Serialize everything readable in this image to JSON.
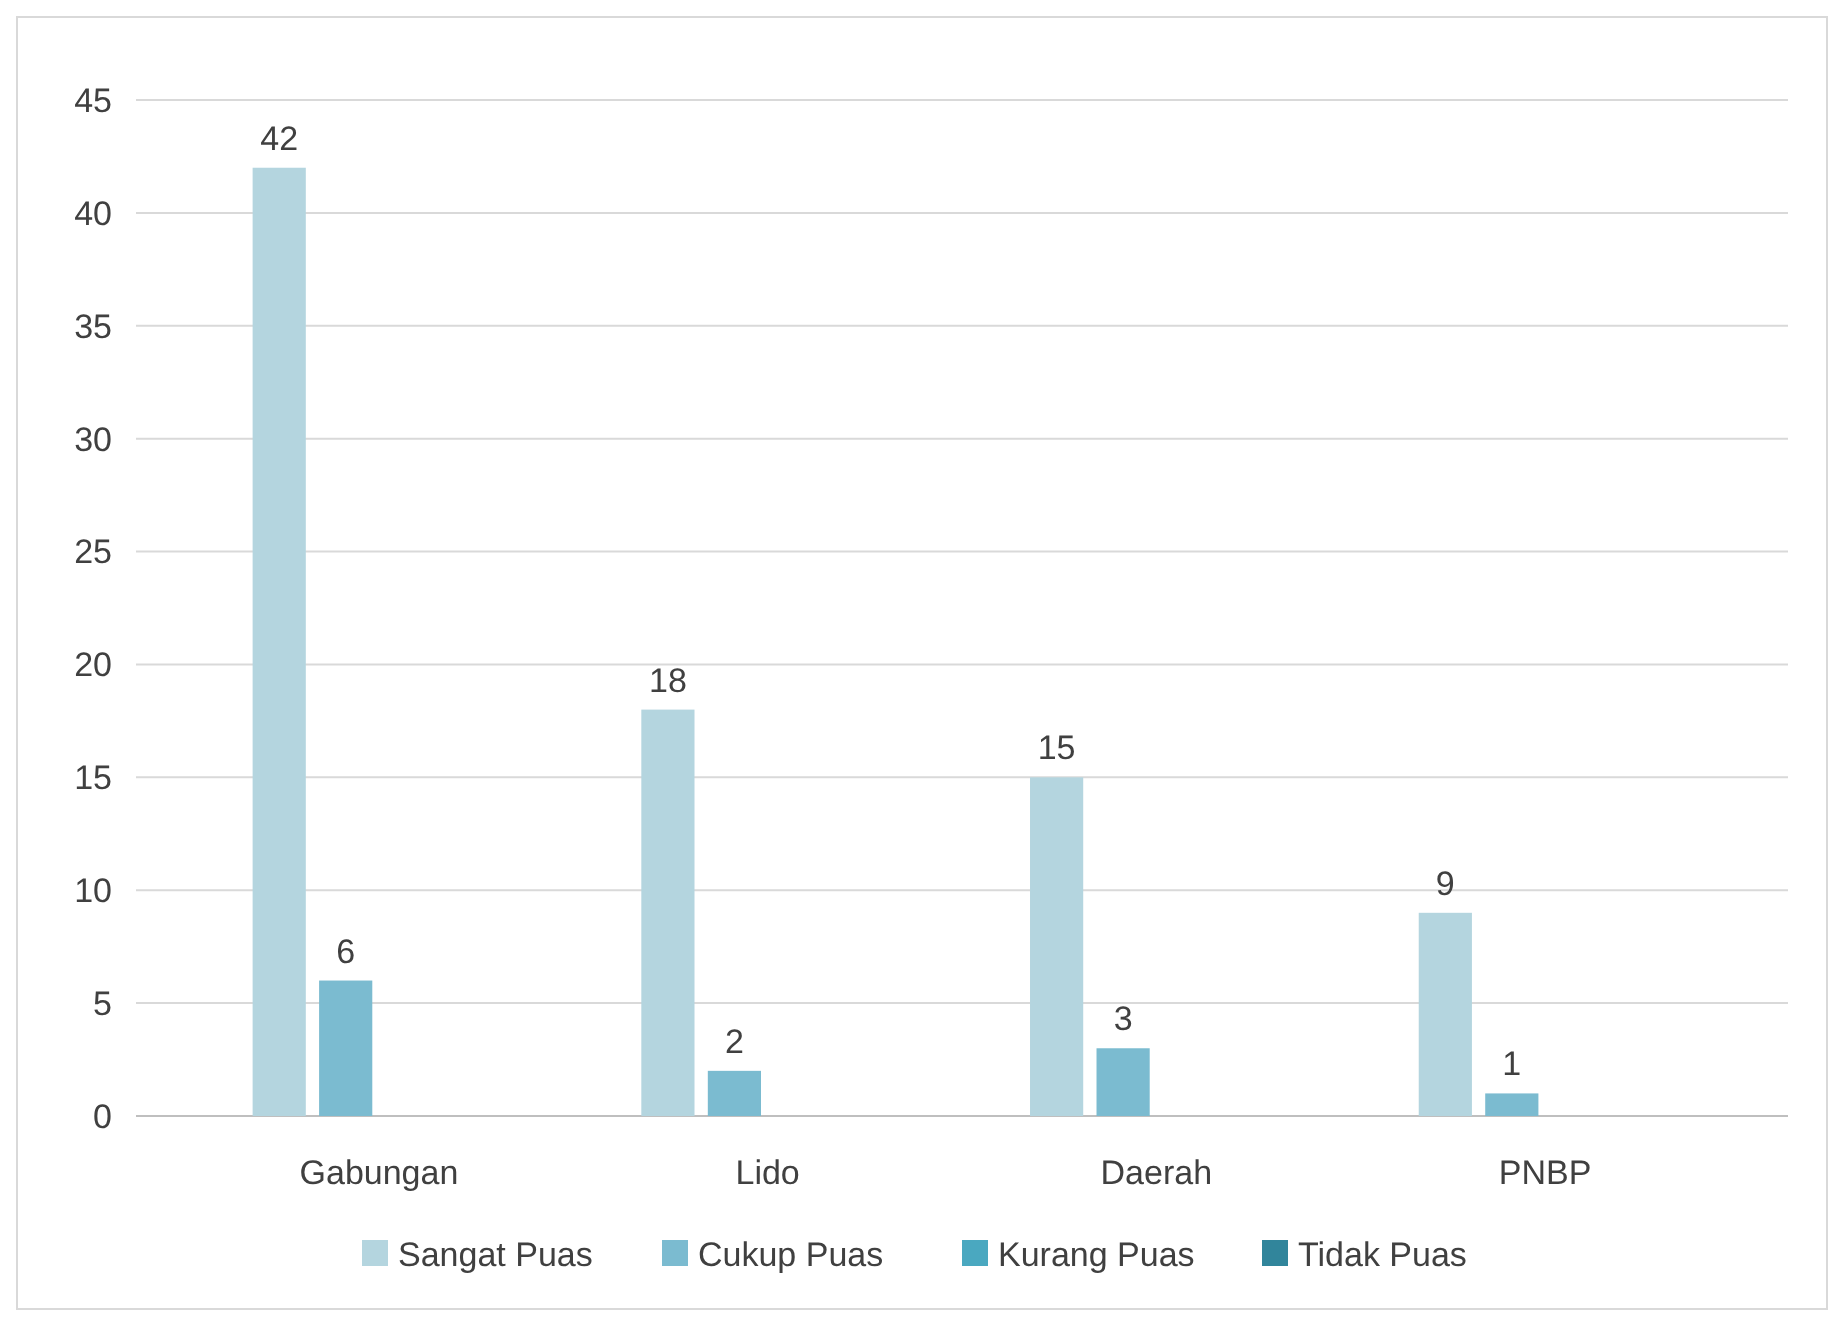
{
  "chart_data": {
    "type": "bar",
    "categories": [
      "Gabungan",
      "Lido",
      "Daerah",
      "PNBP"
    ],
    "series": [
      {
        "name": "Sangat Puas",
        "color": "#b4d5df",
        "values": [
          42,
          18,
          15,
          9
        ],
        "value_labels": [
          "42",
          "18",
          "15",
          "9"
        ]
      },
      {
        "name": "Cukup Puas",
        "color": "#7bbbd0",
        "values": [
          6,
          2,
          3,
          1
        ],
        "value_labels": [
          "6",
          "2",
          "3",
          "1"
        ]
      },
      {
        "name": "Kurang Puas",
        "color": "#4aa8c0",
        "values": [
          0,
          0,
          0,
          0
        ],
        "value_labels": [
          null,
          null,
          null,
          null
        ]
      },
      {
        "name": "Tidak Puas",
        "color": "#31859b",
        "values": [
          0,
          0,
          0,
          0
        ],
        "value_labels": [
          null,
          null,
          null,
          null
        ]
      }
    ],
    "ylim": [
      0,
      45
    ],
    "yticks": [
      0,
      5,
      10,
      15,
      20,
      25,
      30,
      35,
      40,
      45
    ],
    "grid": "y",
    "legend": "bottom"
  }
}
